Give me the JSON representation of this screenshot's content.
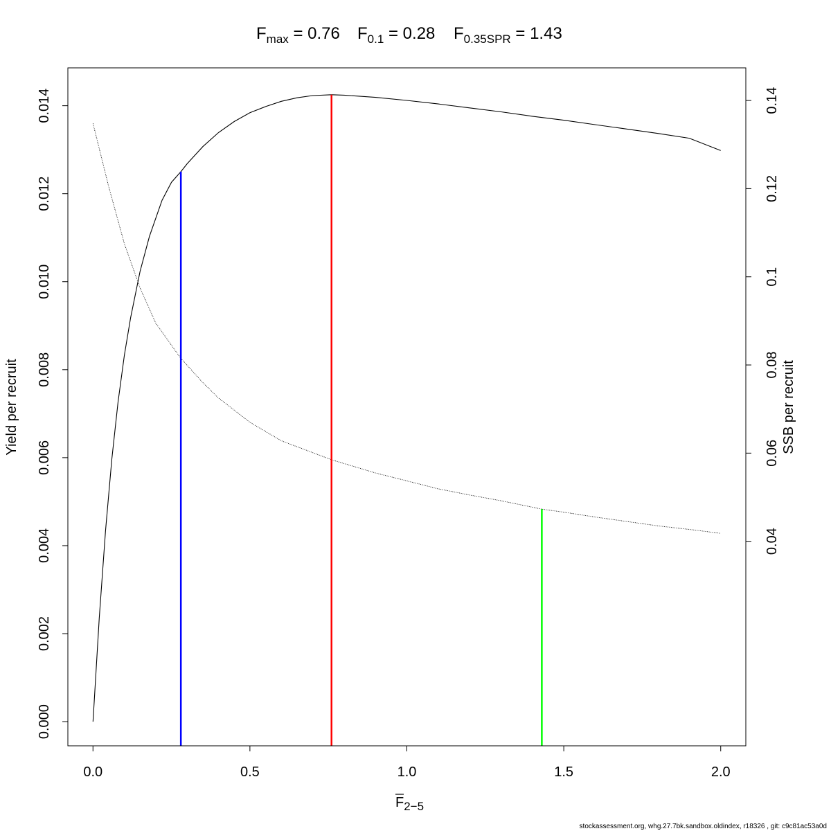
{
  "title": {
    "fmax": {
      "sub": "max",
      "value": "0.76"
    },
    "f01": {
      "sub": "0.1",
      "value": "0.28"
    },
    "fspr": {
      "sub": "0.35SPR",
      "value": "1.43"
    }
  },
  "footer": "stockassessment.org, whg.27.7bk.sandbox.oldindex, r18326 , git: c9c81ac53a0d",
  "chart_data": {
    "type": "line",
    "xlabel": {
      "main": "F",
      "sub": "2−5",
      "overline": true
    },
    "ylabel": "Yield per recruit",
    "y2label": "SSB per recruit",
    "xlim": [
      -0.08,
      2.08
    ],
    "ylim": [
      -0.00055,
      0.01486
    ],
    "y2lim": [
      -0.0064,
      0.1474
    ],
    "x_ticks": [
      {
        "value": 0.0,
        "label": "0.0"
      },
      {
        "value": 0.5,
        "label": "0.5"
      },
      {
        "value": 1.0,
        "label": "1.0"
      },
      {
        "value": 1.5,
        "label": "1.5"
      },
      {
        "value": 2.0,
        "label": "2.0"
      }
    ],
    "y_ticks": [
      {
        "value": 0.0,
        "label": "0.000"
      },
      {
        "value": 0.002,
        "label": "0.002"
      },
      {
        "value": 0.004,
        "label": "0.004"
      },
      {
        "value": 0.006,
        "label": "0.006"
      },
      {
        "value": 0.008,
        "label": "0.008"
      },
      {
        "value": 0.01,
        "label": "0.010"
      },
      {
        "value": 0.012,
        "label": "0.012"
      },
      {
        "value": 0.014,
        "label": "0.014"
      }
    ],
    "y2_ticks": [
      {
        "value": 0.04,
        "label": "0.04"
      },
      {
        "value": 0.06,
        "label": "0.06"
      },
      {
        "value": 0.08,
        "label": "0.08"
      },
      {
        "value": 0.1,
        "label": "0.1"
      },
      {
        "value": 0.12,
        "label": "0.12"
      },
      {
        "value": 0.14,
        "label": "0.14"
      }
    ],
    "series": [
      {
        "axis": "left",
        "style": "solid",
        "color": "#000000",
        "x": [
          0,
          0.02,
          0.04,
          0.06,
          0.08,
          0.1,
          0.12,
          0.15,
          0.18,
          0.22,
          0.25,
          0.28,
          0.3,
          0.35,
          0.4,
          0.45,
          0.5,
          0.55,
          0.6,
          0.65,
          0.7,
          0.76,
          0.8,
          0.9,
          1.0,
          1.1,
          1.2,
          1.3,
          1.4,
          1.5,
          1.6,
          1.7,
          1.8,
          1.9,
          2.0
        ],
        "y": [
          0.0,
          0.00235,
          0.00434,
          0.00597,
          0.00727,
          0.00833,
          0.00918,
          0.01023,
          0.01103,
          0.01185,
          0.01226,
          0.0125,
          0.01268,
          0.01307,
          0.01339,
          0.01364,
          0.01384,
          0.01398,
          0.0141,
          0.01418,
          0.01423,
          0.01425,
          0.01424,
          0.01419,
          0.01412,
          0.01404,
          0.01395,
          0.01386,
          0.01376,
          0.01367,
          0.01357,
          0.01347,
          0.01337,
          0.01326,
          0.01298
        ]
      },
      {
        "axis": "right",
        "style": "dotted",
        "color": "#000000",
        "x": [
          0,
          0.05,
          0.1,
          0.15,
          0.2,
          0.28,
          0.35,
          0.4,
          0.5,
          0.6,
          0.76,
          0.9,
          1.0,
          1.1,
          1.2,
          1.3,
          1.43,
          1.5,
          1.6,
          1.7,
          1.8,
          1.9,
          2.0
        ],
        "y": [
          0.1348,
          0.1205,
          0.1075,
          0.0975,
          0.0895,
          0.0815,
          0.076,
          0.0725,
          0.067,
          0.0628,
          0.0585,
          0.0555,
          0.0537,
          0.0519,
          0.0505,
          0.0492,
          0.0473,
          0.0466,
          0.0455,
          0.0445,
          0.0435,
          0.0427,
          0.0418
        ]
      }
    ],
    "reference_lines": [
      {
        "name": "F0.1",
        "x": 0.28,
        "axis": "left",
        "y_top": 0.0125,
        "color": "#0000ff"
      },
      {
        "name": "Fmax",
        "x": 0.76,
        "axis": "left",
        "y_top": 0.01425,
        "color": "#ff0000"
      },
      {
        "name": "F0.35SPR",
        "x": 1.43,
        "axis": "right",
        "y_top": 0.0473,
        "color": "#00ff00"
      }
    ]
  }
}
